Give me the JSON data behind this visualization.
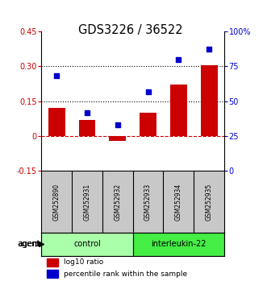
{
  "title": "GDS3226 / 36522",
  "samples": [
    "GSM252890",
    "GSM252931",
    "GSM252932",
    "GSM252933",
    "GSM252934",
    "GSM252935"
  ],
  "log10_ratio": [
    0.12,
    0.07,
    -0.02,
    0.1,
    0.22,
    0.305
  ],
  "percentile_rank": [
    68,
    42,
    33,
    57,
    80,
    87
  ],
  "groups": [
    "control",
    "control",
    "control",
    "interleukin-22",
    "interleukin-22",
    "interleukin-22"
  ],
  "group_colors": {
    "control": "#aaffaa",
    "interleukin-22": "#44ee44"
  },
  "bar_color": "#CC0000",
  "dot_color": "#0000CC",
  "ylim_left": [
    -0.15,
    0.45
  ],
  "ylim_right": [
    0,
    100
  ],
  "yticks_left": [
    -0.15,
    0.0,
    0.15,
    0.3,
    0.45
  ],
  "yticks_right": [
    0,
    25,
    50,
    75,
    100
  ],
  "ytick_labels_left": [
    "-0.15",
    "0",
    "0.15",
    "0.30",
    "0.45"
  ],
  "ytick_labels_right": [
    "0",
    "25",
    "50",
    "75",
    "100%"
  ],
  "hlines": [
    0.15,
    0.3
  ],
  "zero_line_color": "#CC0000",
  "hline_color": "black",
  "background_color": "white",
  "plot_bg": "white",
  "legend_log10": "log10 ratio",
  "legend_pct": "percentile rank within the sample",
  "sample_box_color": "#C8C8C8"
}
